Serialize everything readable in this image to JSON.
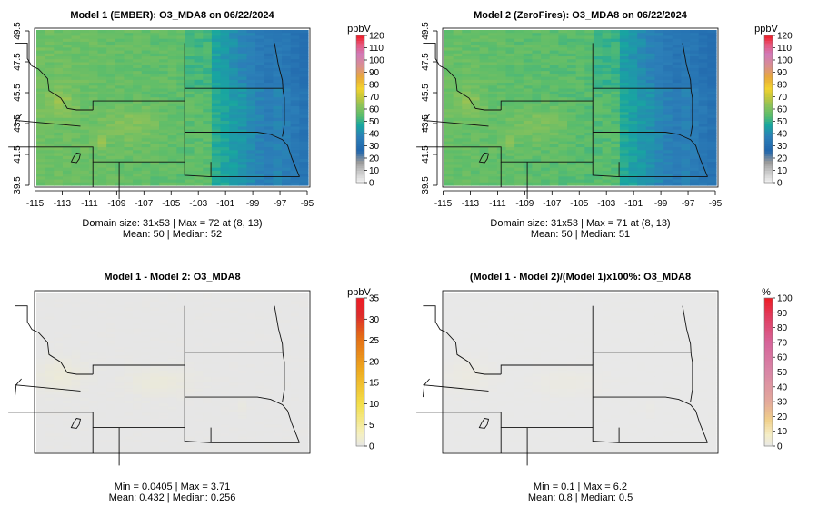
{
  "chart_data": [
    {
      "type": "heatmap",
      "title": "Model 1 (EMBER): O3_MDA8 on 06/22/2024",
      "xticks": [
        "-115",
        "-113",
        "-111",
        "-109",
        "-107",
        "-105",
        "-103",
        "-101",
        "-99",
        "-97",
        "-95"
      ],
      "yticks": [
        "39.5",
        "41.5",
        "43.5",
        "45.5",
        "47.5",
        "49.5"
      ],
      "xlim": [
        -115,
        -95
      ],
      "ylim": [
        39.5,
        49.5
      ],
      "legend_unit": "ppbV",
      "legend_ticks": [
        "0",
        "10",
        "20",
        "30",
        "40",
        "50",
        "60",
        "70",
        "80",
        "90",
        "100",
        "110",
        "120"
      ],
      "legend_range": [
        0,
        120
      ],
      "palette": "ozone",
      "stats_line1": "Domain size: 31x53 | Max = 72 at (8, 13)",
      "stats_line2": "Mean: 50 |  Median: 52",
      "field": {
        "mean": 50,
        "max": 72,
        "peak_x": -110.5,
        "peak_y": 42.3,
        "scale": 1.0
      }
    },
    {
      "type": "heatmap",
      "title": "Model 2 (ZeroFires): O3_MDA8 on 06/22/2024",
      "xticks": [
        "-115",
        "-113",
        "-111",
        "-109",
        "-107",
        "-105",
        "-103",
        "-101",
        "-99",
        "-97",
        "-95"
      ],
      "yticks": [
        "39.5",
        "41.5",
        "43.5",
        "45.5",
        "47.5",
        "49.5"
      ],
      "xlim": [
        -115,
        -95
      ],
      "ylim": [
        39.5,
        49.5
      ],
      "legend_unit": "ppbV",
      "legend_ticks": [
        "0",
        "10",
        "20",
        "30",
        "40",
        "50",
        "60",
        "70",
        "80",
        "90",
        "100",
        "110",
        "120"
      ],
      "legend_range": [
        0,
        120
      ],
      "palette": "ozone",
      "stats_line1": "Domain size: 31x53 | Max = 71 at (8, 13)",
      "stats_line2": "Mean: 50 |  Median: 51",
      "field": {
        "mean": 50,
        "max": 71,
        "peak_x": -110.5,
        "peak_y": 42.3,
        "scale": 0.98
      }
    },
    {
      "type": "heatmap",
      "title": "Model 1 - Model 2: O3_MDA8",
      "legend_unit": "ppbV",
      "legend_ticks": [
        "0",
        "5",
        "10",
        "15",
        "20",
        "25",
        "30",
        "35"
      ],
      "legend_range": [
        0,
        35
      ],
      "palette": "diff",
      "stats_line1": "Min = 0.0405 | Max = 3.71",
      "stats_line2": "Mean: 0.432 |  Median: 0.256",
      "field": {
        "mean": 0.432,
        "max": 3.71,
        "peak_x": -113.5,
        "peak_y": 44.5,
        "scale": 1.0
      }
    },
    {
      "type": "heatmap",
      "title": "(Model 1 - Model 2)/(Model 1)x100%: O3_MDA8",
      "legend_unit": "%",
      "legend_ticks": [
        "0",
        "10",
        "20",
        "30",
        "40",
        "50",
        "60",
        "70",
        "80",
        "90",
        "100"
      ],
      "legend_range": [
        0,
        100
      ],
      "palette": "diff",
      "stats_line1": "Min = 0.1 | Max = 6.2",
      "stats_line2": "Mean: 0.8 |  Median: 0.5",
      "field": {
        "mean": 0.8,
        "max": 6.2,
        "peak_x": -113.5,
        "peak_y": 44.5,
        "scale": 1.0
      }
    }
  ]
}
